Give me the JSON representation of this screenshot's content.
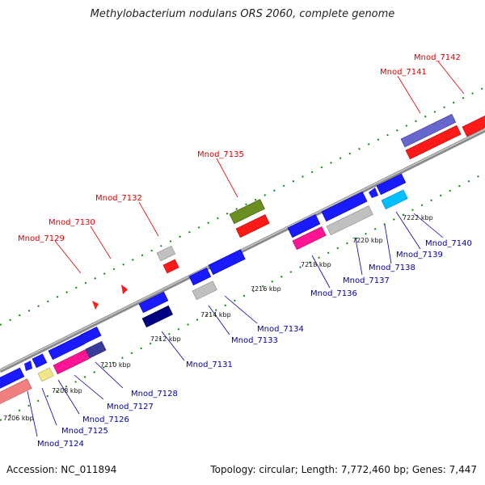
{
  "title": "Methylobacterium nodulans ORS 2060, complete genome",
  "footer": {
    "accession": "Accession: NC_011894",
    "topology": "Topology: circular; Length: 7,772,460 bp; Genes: 7,447"
  },
  "colors": {
    "backbone": "#8a8a8a",
    "tick": "#118811",
    "label_top": "#dd0000",
    "label_bottom": "#0000aa"
  },
  "scale_labels": [
    "7206 kbp",
    "7208 kbp",
    "7210 kbp",
    "7212 kbp",
    "7214 kbp",
    "7216 kbp",
    "7218 kbp",
    "7220 kbp",
    "7222 kbp"
  ],
  "top_labels": [
    "Mnod_7129",
    "Mnod_7130",
    "Mnod_7132",
    "Mnod_7135",
    "Mnod_7141",
    "Mnod_7142"
  ],
  "bottom_labels": [
    "Mnod_7124",
    "Mnod_7125",
    "Mnod_7126",
    "Mnod_7127",
    "Mnod_7128",
    "Mnod_7131",
    "Mnod_7133",
    "Mnod_7134",
    "Mnod_7136",
    "Mnod_7137",
    "Mnod_7138",
    "Mnod_7139",
    "Mnod_7140"
  ]
}
